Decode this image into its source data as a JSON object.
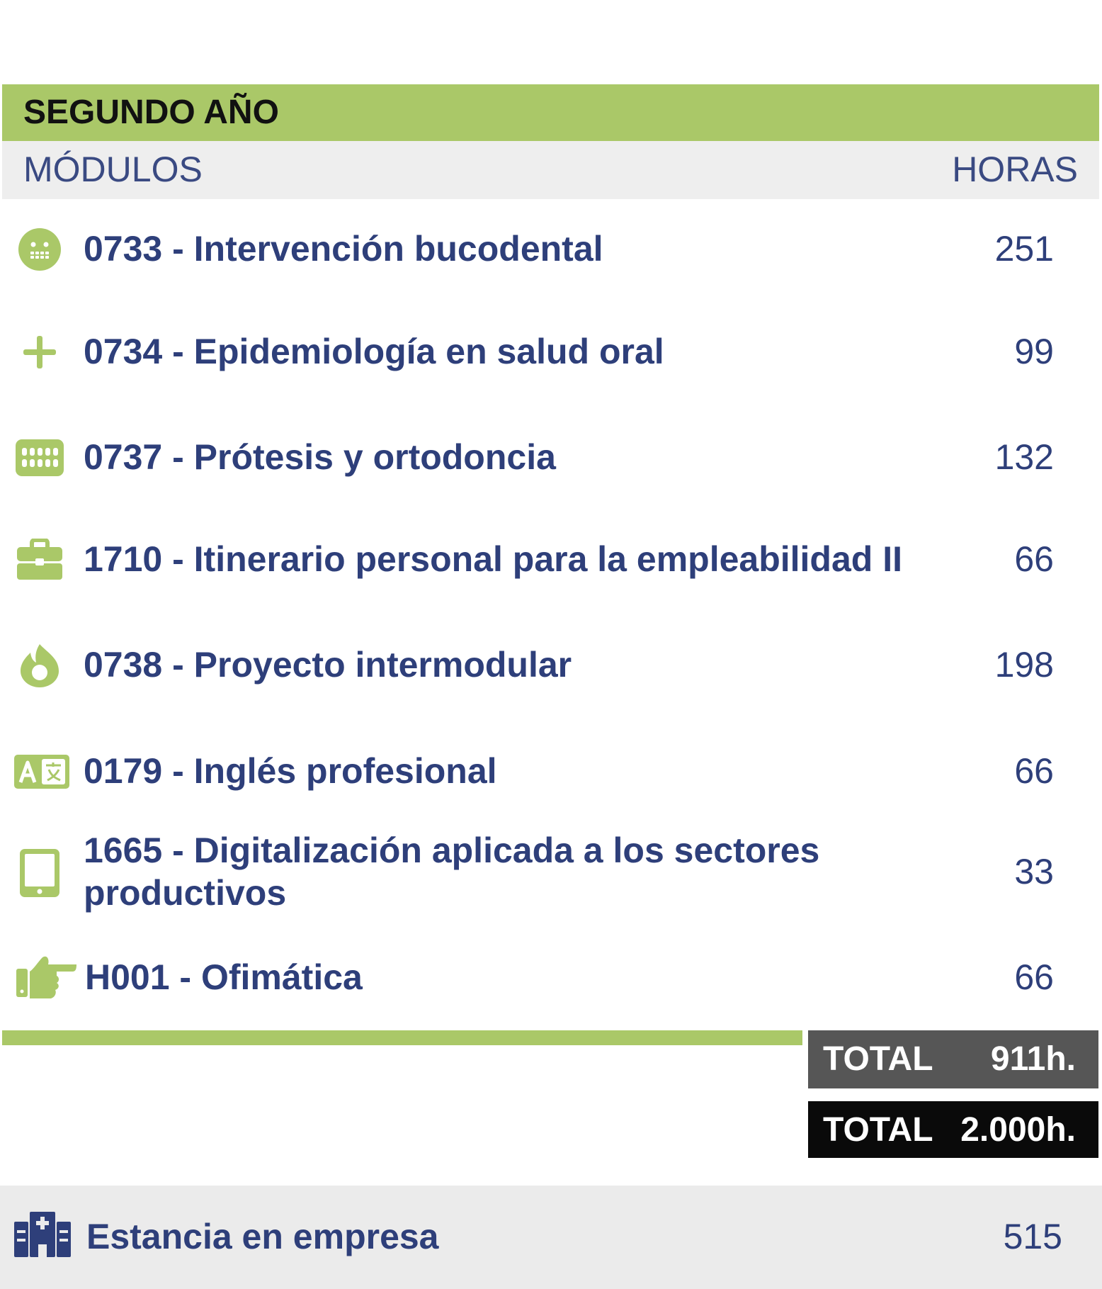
{
  "section": {
    "title": "SEGUNDO AÑO",
    "col_modules": "MÓDULOS",
    "col_hours": "HORAS"
  },
  "modules": [
    {
      "name": "0733 - Intervención bucodental",
      "hours": "251",
      "icon": "face-icon"
    },
    {
      "name": "0734 - Epidemiología en salud oral",
      "hours": "99",
      "icon": "plus-icon"
    },
    {
      "name": "0737 - Prótesis y ortodoncia",
      "hours": "132",
      "icon": "teeth-icon"
    },
    {
      "name": "1710 - Itinerario personal para la empleabilidad II",
      "hours": "66",
      "icon": "briefcase-icon"
    },
    {
      "name": "0738 - Proyecto intermodular",
      "hours": "198",
      "icon": "flame-icon"
    },
    {
      "name": "0179 - Inglés profesional",
      "hours": "66",
      "icon": "translate-icon"
    },
    {
      "name": "1665 - Digitalización aplicada a los sectores productivos",
      "hours": "33",
      "icon": "tablet-icon"
    },
    {
      "name": "H001 - Ofimática",
      "hours": "66",
      "icon": "pointing-hand-icon"
    }
  ],
  "totals": {
    "year_label": "TOTAL",
    "year_value": "911h.",
    "overall_label": "TOTAL",
    "overall_value": "2.000h."
  },
  "footer": {
    "name": "Estancia en empresa",
    "hours": "515",
    "icon": "hospital-icon"
  },
  "colors": {
    "accent_green": "#aac868",
    "text_blue": "#2e3f7a",
    "header_gray": "#eeeeee",
    "total_gray": "#565656",
    "total_black": "#0a0a0a"
  }
}
